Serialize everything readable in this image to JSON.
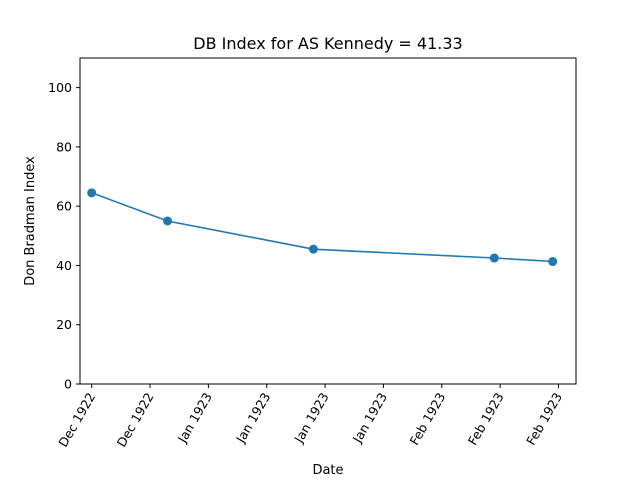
{
  "chart_data": {
    "type": "line",
    "title": "DB Index for AS Kennedy = 41.33",
    "xlabel": "Date",
    "ylabel": "Don Bradman Index",
    "ylim": [
      0,
      110
    ],
    "yticks": [
      0,
      20,
      40,
      60,
      80,
      100
    ],
    "xlim": [
      "1922-11-29",
      "1923-02-22"
    ],
    "xticks": [
      {
        "date": "1922-12-01",
        "label": "Dec 1922"
      },
      {
        "date": "1922-12-11",
        "label": "Dec 1922"
      },
      {
        "date": "1922-12-21",
        "label": "Jan 1923"
      },
      {
        "date": "1922-12-31",
        "label": "Jan 1923"
      },
      {
        "date": "1923-01-10",
        "label": "Jan 1923"
      },
      {
        "date": "1923-01-20",
        "label": "Jan 1923"
      },
      {
        "date": "1923-01-30",
        "label": "Feb 1923"
      },
      {
        "date": "1923-02-09",
        "label": "Feb 1923"
      },
      {
        "date": "1923-02-19",
        "label": "Feb 1923"
      }
    ],
    "series": [
      {
        "color": "#1f77b4",
        "x": [
          "1922-12-01",
          "1922-12-14",
          "1923-01-08",
          "1923-02-08",
          "1923-02-18"
        ],
        "y": [
          64.5,
          55.0,
          45.5,
          42.5,
          41.33
        ]
      }
    ],
    "grid": false,
    "legend": "none"
  }
}
